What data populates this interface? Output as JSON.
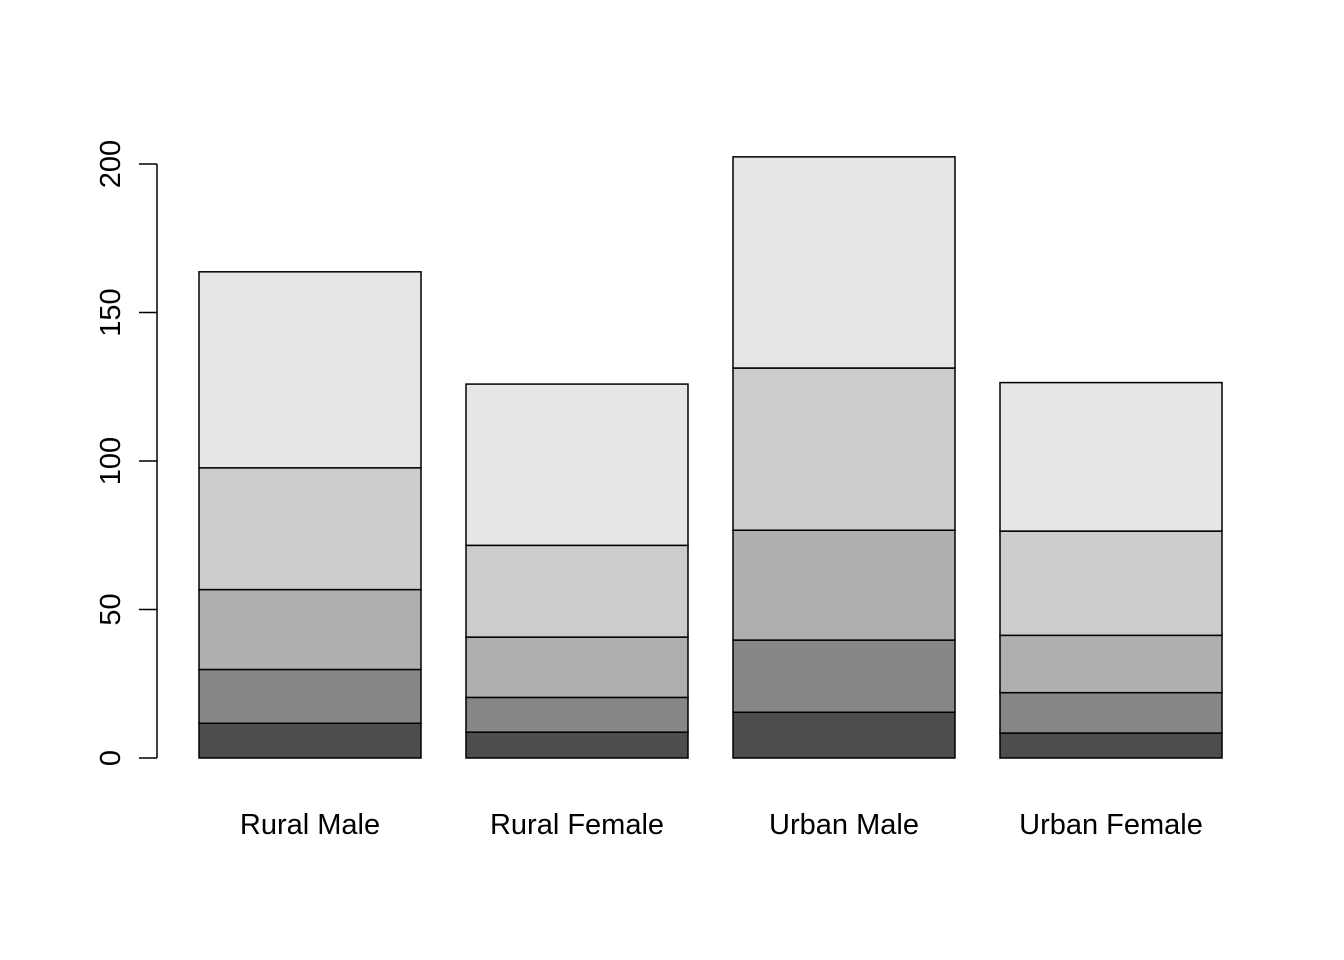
{
  "chart_data": {
    "type": "bar",
    "stacked": true,
    "title": "",
    "xlabel": "",
    "ylabel": "",
    "categories": [
      "Rural Male",
      "Rural Female",
      "Urban Male",
      "Urban Female"
    ],
    "series": [
      {
        "values": [
          11.7,
          8.7,
          15.4,
          8.4
        ],
        "color": "#4d4d4d"
      },
      {
        "values": [
          18.1,
          11.7,
          24.3,
          13.6
        ],
        "color": "#878787"
      },
      {
        "values": [
          26.9,
          20.3,
          37.0,
          19.3
        ],
        "color": "#afafaf"
      },
      {
        "values": [
          41.0,
          30.9,
          54.6,
          35.1
        ],
        "color": "#cccccc"
      },
      {
        "values": [
          66.0,
          54.3,
          71.1,
          50.0
        ],
        "color": "#e6e6e6"
      }
    ],
    "ylim": [
      0,
      200
    ],
    "yticks": [
      0,
      50,
      100,
      150,
      200
    ],
    "grid": false,
    "legend": "none"
  }
}
